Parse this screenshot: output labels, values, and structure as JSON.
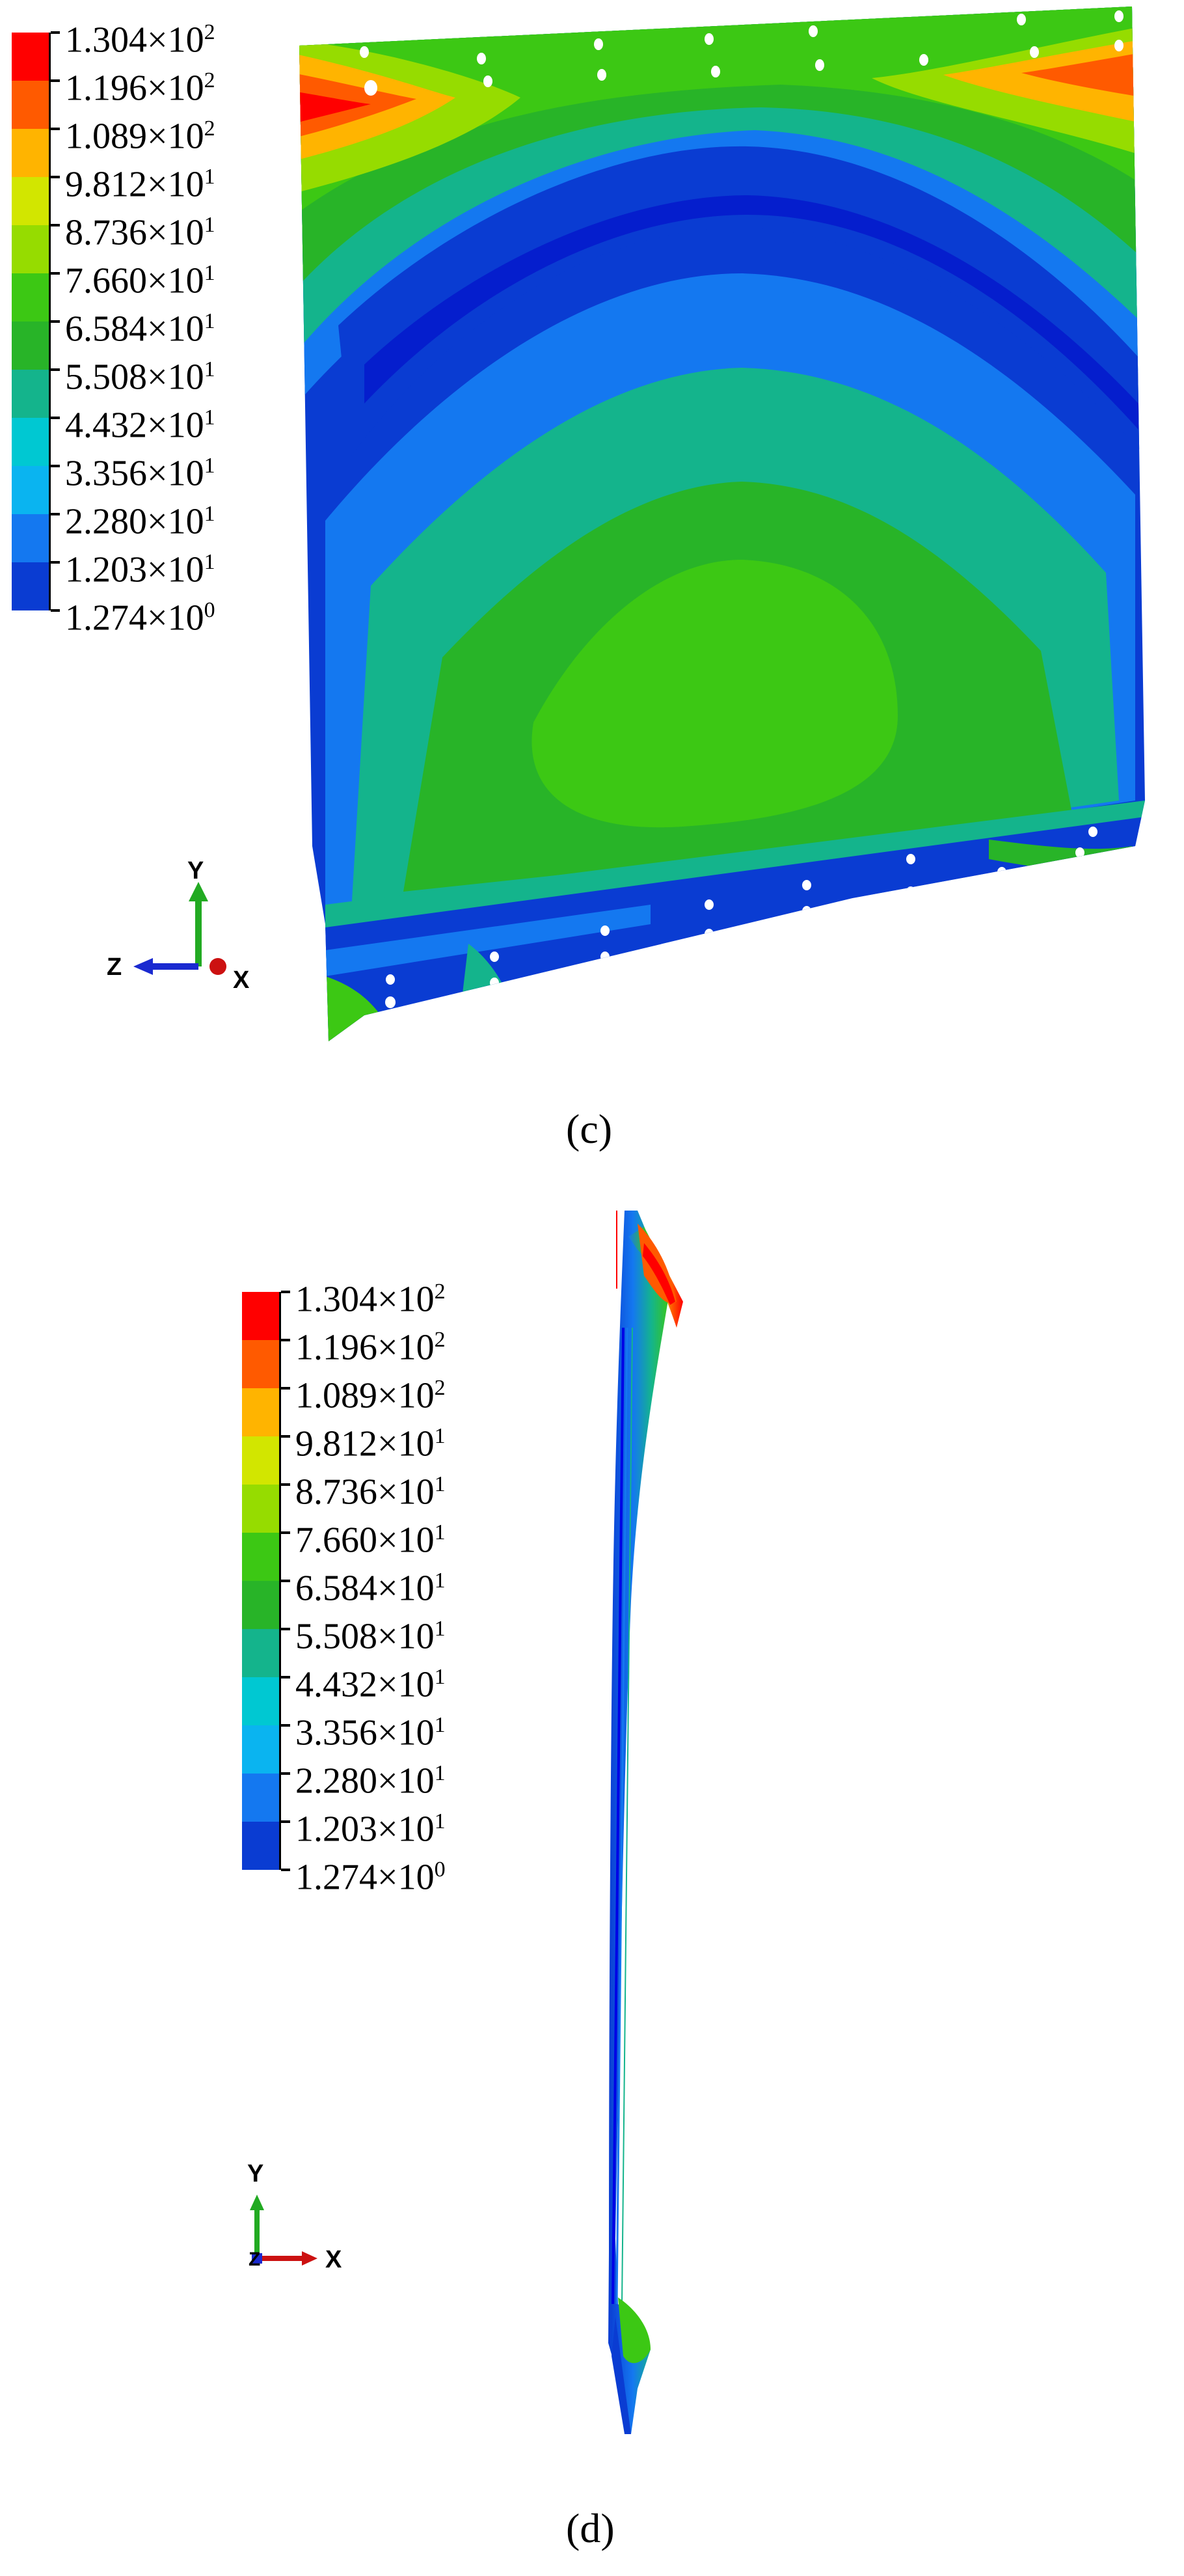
{
  "colors": {
    "red": "#ff0000",
    "orange_red": "#ff5a00",
    "orange": "#ffb400",
    "yellow": "#d2e600",
    "yellow_green": "#96dc00",
    "green": "#3cc814",
    "green2": "#28b428",
    "teal": "#14b48c",
    "cyan": "#00c8d2",
    "sky": "#0ab4f0",
    "blue_light": "#1478f0",
    "blue": "#0a3cd2",
    "navy": "#0000e6"
  },
  "legend": {
    "labels": [
      {
        "mantissa": "1.304",
        "exp": "2"
      },
      {
        "mantissa": "1.196",
        "exp": "2"
      },
      {
        "mantissa": "1.089",
        "exp": "2"
      },
      {
        "mantissa": "9.812",
        "exp": "1"
      },
      {
        "mantissa": "8.736",
        "exp": "1"
      },
      {
        "mantissa": "7.660",
        "exp": "1"
      },
      {
        "mantissa": "6.584",
        "exp": "1"
      },
      {
        "mantissa": "5.508",
        "exp": "1"
      },
      {
        "mantissa": "4.432",
        "exp": "1"
      },
      {
        "mantissa": "3.356",
        "exp": "1"
      },
      {
        "mantissa": "2.280",
        "exp": "1"
      },
      {
        "mantissa": "1.203",
        "exp": "1"
      },
      {
        "mantissa": "1.274",
        "exp": "0"
      }
    ],
    "multiplier": "×10"
  },
  "panel_c": {
    "caption": "(c)",
    "triad": {
      "y": "Y",
      "z": "Z",
      "x": "X"
    }
  },
  "panel_d": {
    "caption": "(d)",
    "triad": {
      "y": "Y",
      "z": "Z",
      "x": "X"
    }
  }
}
